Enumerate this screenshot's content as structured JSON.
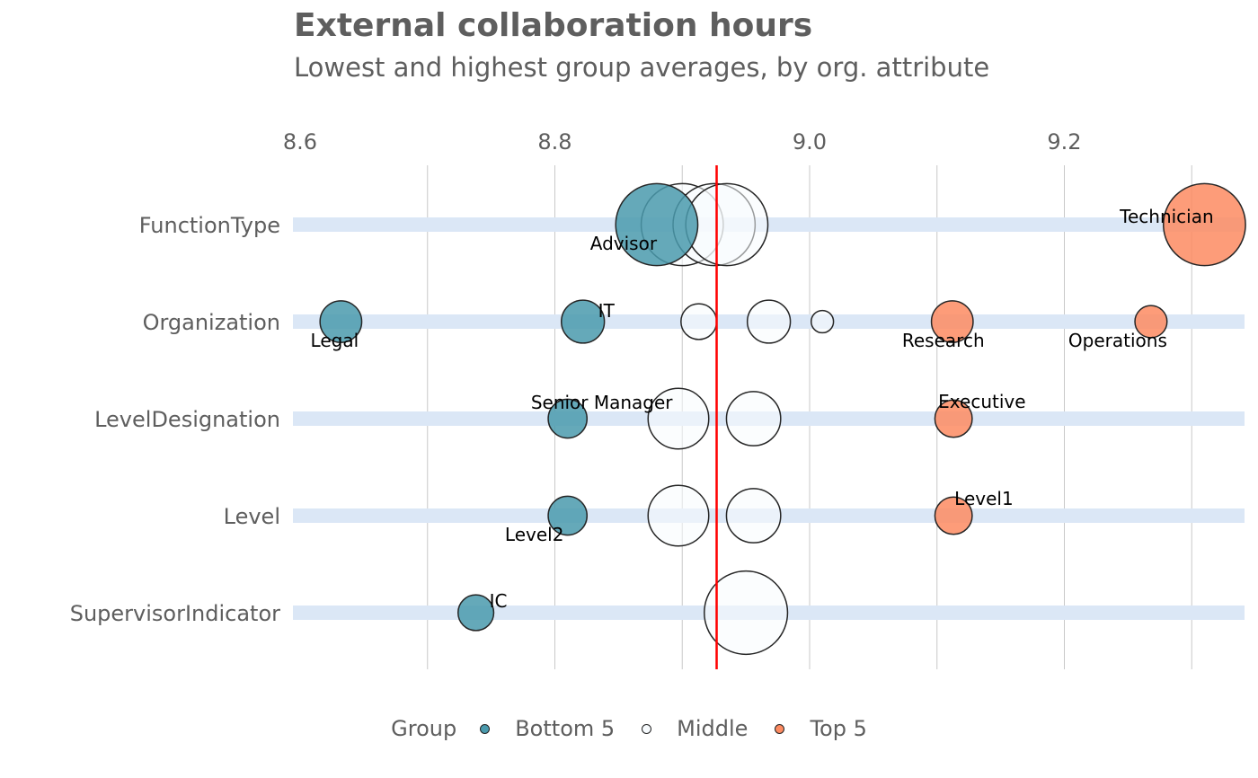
{
  "title": "External collaboration hours",
  "subtitle": "Lowest and highest group averages, by org. attribute",
  "colors": {
    "bottom": "#4a9aad",
    "middle": "#f7fbfe",
    "top": "#fd8b61",
    "reference_line": "#ff0000",
    "row_band": "#dbe7f6",
    "grid": "#c8c8c8"
  },
  "legend": {
    "title": "Group",
    "items": [
      {
        "key": "bottom",
        "label": "Bottom 5"
      },
      {
        "key": "middle",
        "label": "Middle"
      },
      {
        "key": "top",
        "label": "Top 5"
      }
    ]
  },
  "chart_data": {
    "type": "scatter",
    "x_axis": {
      "position": "top",
      "ticks": [
        "8.6",
        "8.8",
        "9.0",
        "9.2"
      ],
      "tick_values": [
        8.6,
        8.8,
        9.0,
        9.2
      ],
      "range": [
        8.6,
        9.345
      ]
    },
    "reference_value": 8.927,
    "rows": [
      "FunctionType",
      "Organization",
      "LevelDesignation",
      "Level",
      "SupervisorIndicator"
    ],
    "points": [
      {
        "row": "FunctionType",
        "x": 8.88,
        "group": "bottom",
        "size": 60,
        "label": "Advisor",
        "label_pos": "below-left"
      },
      {
        "row": "FunctionType",
        "x": 8.9,
        "group": "middle",
        "size": 60,
        "label": "",
        "label_pos": ""
      },
      {
        "row": "FunctionType",
        "x": 8.925,
        "group": "middle",
        "size": 60,
        "label": "",
        "label_pos": ""
      },
      {
        "row": "FunctionType",
        "x": 8.935,
        "group": "middle",
        "size": 60,
        "label": "",
        "label_pos": ""
      },
      {
        "row": "FunctionType",
        "x": 9.31,
        "group": "top",
        "size": 60,
        "label": "Technician",
        "label_pos": "above-left"
      },
      {
        "row": "Organization",
        "x": 8.632,
        "group": "bottom",
        "size": 12,
        "label": "Legal",
        "label_pos": "below"
      },
      {
        "row": "Organization",
        "x": 8.822,
        "group": "bottom",
        "size": 13,
        "label": "IT",
        "label_pos": "above-right"
      },
      {
        "row": "Organization",
        "x": 8.913,
        "group": "middle",
        "size": 8,
        "label": "",
        "label_pos": ""
      },
      {
        "row": "Organization",
        "x": 8.968,
        "group": "middle",
        "size": 13,
        "label": "",
        "label_pos": ""
      },
      {
        "row": "Organization",
        "x": 9.01,
        "group": "middle",
        "size": 2,
        "label": "",
        "label_pos": ""
      },
      {
        "row": "Organization",
        "x": 9.112,
        "group": "top",
        "size": 12,
        "label": "Research",
        "label_pos": "below-left"
      },
      {
        "row": "Organization",
        "x": 9.268,
        "group": "top",
        "size": 6,
        "label": "Operations",
        "label_pos": "below-left"
      },
      {
        "row": "LevelDesignation",
        "x": 8.81,
        "group": "bottom",
        "size": 10,
        "label": "Senior Manager",
        "label_pos": "above"
      },
      {
        "row": "LevelDesignation",
        "x": 8.897,
        "group": "middle",
        "size": 30,
        "label": "",
        "label_pos": ""
      },
      {
        "row": "LevelDesignation",
        "x": 8.956,
        "group": "middle",
        "size": 23,
        "label": "",
        "label_pos": ""
      },
      {
        "row": "LevelDesignation",
        "x": 9.113,
        "group": "top",
        "size": 9,
        "label": "Executive",
        "label_pos": "above-right"
      },
      {
        "row": "Level",
        "x": 8.81,
        "group": "bottom",
        "size": 10,
        "label": "Level2",
        "label_pos": "below-left"
      },
      {
        "row": "Level",
        "x": 8.897,
        "group": "middle",
        "size": 30,
        "label": "",
        "label_pos": ""
      },
      {
        "row": "Level",
        "x": 8.956,
        "group": "middle",
        "size": 23,
        "label": "",
        "label_pos": ""
      },
      {
        "row": "Level",
        "x": 9.113,
        "group": "top",
        "size": 9,
        "label": "Level1",
        "label_pos": "above-right"
      },
      {
        "row": "SupervisorIndicator",
        "x": 8.738,
        "group": "bottom",
        "size": 8,
        "label": "IC",
        "label_pos": "above-right"
      },
      {
        "row": "SupervisorIndicator",
        "x": 8.95,
        "group": "middle",
        "size": 62,
        "label": "",
        "label_pos": ""
      }
    ]
  }
}
